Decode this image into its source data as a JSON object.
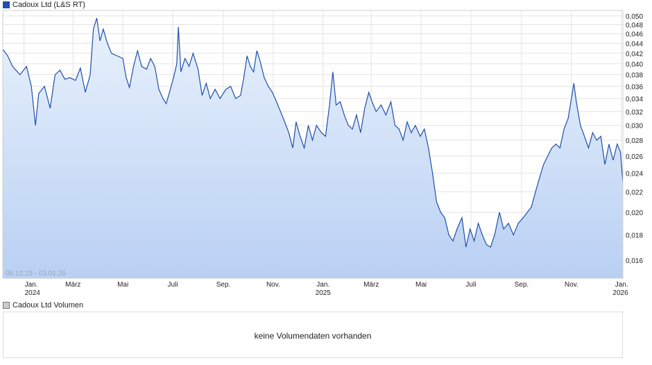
{
  "price_panel": {
    "legend_label": "Cadoux Ltd (L&S RT)",
    "date_range": "06.12.23 - 03.01.26"
  },
  "volume_panel": {
    "legend_label": "Cadoux Ltd Volumen",
    "message": "keine Volumendaten vorhanden"
  },
  "colors": {
    "line": "#1f4fa8",
    "fill_top": "#e9f2fc",
    "fill_bottom": "#b9d0f3",
    "grid": "#e3e3e3"
  },
  "chart_data": {
    "type": "area",
    "title": "Cadoux Ltd (L&S RT)",
    "xlabel": "",
    "ylabel": "",
    "x_tick_labels": [
      {
        "date": "2024-01-01",
        "label": "Jan.",
        "year": "2024"
      },
      {
        "date": "2024-03-01",
        "label": "März",
        "year": ""
      },
      {
        "date": "2024-05-01",
        "label": "Mai",
        "year": ""
      },
      {
        "date": "2024-07-01",
        "label": "Juli",
        "year": ""
      },
      {
        "date": "2024-09-01",
        "label": "Sep.",
        "year": ""
      },
      {
        "date": "2024-11-01",
        "label": "Nov.",
        "year": ""
      },
      {
        "date": "2025-01-01",
        "label": "Jan.",
        "year": "2025"
      },
      {
        "date": "2025-03-01",
        "label": "März",
        "year": ""
      },
      {
        "date": "2025-05-01",
        "label": "Mai",
        "year": ""
      },
      {
        "date": "2025-07-01",
        "label": "Juli",
        "year": ""
      },
      {
        "date": "2025-09-01",
        "label": "Sep.",
        "year": ""
      },
      {
        "date": "2025-11-01",
        "label": "Nov.",
        "year": ""
      },
      {
        "date": "2026-01-01",
        "label": "Jan.",
        "year": "2026"
      }
    ],
    "y_ticks": [
      {
        "value": 0.016,
        "label": "0,016"
      },
      {
        "value": 0.018,
        "label": "0,018"
      },
      {
        "value": 0.02,
        "label": "0,020"
      },
      {
        "value": 0.022,
        "label": "0,022"
      },
      {
        "value": 0.024,
        "label": "0,024"
      },
      {
        "value": 0.026,
        "label": "0,026"
      },
      {
        "value": 0.028,
        "label": "0,028"
      },
      {
        "value": 0.03,
        "label": "0,030"
      },
      {
        "value": 0.032,
        "label": "0,032"
      },
      {
        "value": 0.034,
        "label": "0,034"
      },
      {
        "value": 0.036,
        "label": "0,036"
      },
      {
        "value": 0.038,
        "label": "0,038"
      },
      {
        "value": 0.04,
        "label": "0,040"
      },
      {
        "value": 0.042,
        "label": "0,042"
      },
      {
        "value": 0.044,
        "label": "0,044"
      },
      {
        "value": 0.046,
        "label": "0,046"
      },
      {
        "value": 0.048,
        "label": "0,048"
      },
      {
        "value": 0.05,
        "label": "0,050"
      }
    ],
    "ylim": [
      0.0147,
      0.0513
    ],
    "xlim": [
      "2023-12-06",
      "2026-01-03"
    ],
    "y_scale": "log",
    "grid": true,
    "series": [
      {
        "values": [
          [
            "2023-12-06",
            0.0428
          ],
          [
            "2023-12-12",
            0.0415
          ],
          [
            "2023-12-18",
            0.0395
          ],
          [
            "2023-12-27",
            0.038
          ],
          [
            "2024-01-04",
            0.0395
          ],
          [
            "2024-01-10",
            0.036
          ],
          [
            "2024-01-15",
            0.03
          ],
          [
            "2024-01-19",
            0.0348
          ],
          [
            "2024-01-26",
            0.036
          ],
          [
            "2024-02-02",
            0.0325
          ],
          [
            "2024-02-08",
            0.038
          ],
          [
            "2024-02-14",
            0.0388
          ],
          [
            "2024-02-20",
            0.0372
          ],
          [
            "2024-02-26",
            0.0375
          ],
          [
            "2024-03-04",
            0.037
          ],
          [
            "2024-03-10",
            0.0392
          ],
          [
            "2024-03-16",
            0.035
          ],
          [
            "2024-03-22",
            0.038
          ],
          [
            "2024-03-26",
            0.047
          ],
          [
            "2024-03-30",
            0.0495
          ],
          [
            "2024-04-03",
            0.0445
          ],
          [
            "2024-04-07",
            0.047
          ],
          [
            "2024-04-12",
            0.044
          ],
          [
            "2024-04-17",
            0.042
          ],
          [
            "2024-04-24",
            0.0415
          ],
          [
            "2024-05-01",
            0.041
          ],
          [
            "2024-05-05",
            0.0375
          ],
          [
            "2024-05-09",
            0.0358
          ],
          [
            "2024-05-14",
            0.0395
          ],
          [
            "2024-05-19",
            0.0425
          ],
          [
            "2024-05-24",
            0.0395
          ],
          [
            "2024-05-30",
            0.039
          ],
          [
            "2024-06-04",
            0.041
          ],
          [
            "2024-06-09",
            0.0395
          ],
          [
            "2024-06-14",
            0.0355
          ],
          [
            "2024-06-19",
            0.034
          ],
          [
            "2024-06-23",
            0.0332
          ],
          [
            "2024-06-27",
            0.035
          ],
          [
            "2024-07-02",
            0.0375
          ],
          [
            "2024-07-06",
            0.04
          ],
          [
            "2024-07-08",
            0.0475
          ],
          [
            "2024-07-11",
            0.0385
          ],
          [
            "2024-07-16",
            0.041
          ],
          [
            "2024-07-21",
            0.0395
          ],
          [
            "2024-07-26",
            0.042
          ],
          [
            "2024-08-01",
            0.039
          ],
          [
            "2024-08-06",
            0.0345
          ],
          [
            "2024-08-11",
            0.0365
          ],
          [
            "2024-08-16",
            0.034
          ],
          [
            "2024-08-22",
            0.0355
          ],
          [
            "2024-08-28",
            0.034
          ],
          [
            "2024-09-04",
            0.0355
          ],
          [
            "2024-09-10",
            0.036
          ],
          [
            "2024-09-16",
            0.034
          ],
          [
            "2024-09-22",
            0.0345
          ],
          [
            "2024-09-26",
            0.0375
          ],
          [
            "2024-09-30",
            0.0415
          ],
          [
            "2024-10-04",
            0.0395
          ],
          [
            "2024-10-08",
            0.0385
          ],
          [
            "2024-10-12",
            0.0425
          ],
          [
            "2024-10-16",
            0.0405
          ],
          [
            "2024-10-21",
            0.0375
          ],
          [
            "2024-10-26",
            0.036
          ],
          [
            "2024-10-31",
            0.035
          ],
          [
            "2024-11-05",
            0.0335
          ],
          [
            "2024-11-10",
            0.032
          ],
          [
            "2024-11-15",
            0.0305
          ],
          [
            "2024-11-20",
            0.029
          ],
          [
            "2024-11-25",
            0.027
          ],
          [
            "2024-11-29",
            0.0305
          ],
          [
            "2024-12-04",
            0.0285
          ],
          [
            "2024-12-09",
            0.027
          ],
          [
            "2024-12-14",
            0.03
          ],
          [
            "2024-12-19",
            0.028
          ],
          [
            "2024-12-24",
            0.03
          ],
          [
            "2024-12-30",
            0.029
          ],
          [
            "2025-01-04",
            0.0285
          ],
          [
            "2025-01-09",
            0.033
          ],
          [
            "2025-01-13",
            0.0385
          ],
          [
            "2025-01-17",
            0.033
          ],
          [
            "2025-01-22",
            0.0335
          ],
          [
            "2025-01-27",
            0.0315
          ],
          [
            "2025-02-01",
            0.03
          ],
          [
            "2025-02-06",
            0.0295
          ],
          [
            "2025-02-11",
            0.0315
          ],
          [
            "2025-02-16",
            0.029
          ],
          [
            "2025-02-21",
            0.0325
          ],
          [
            "2025-02-26",
            0.035
          ],
          [
            "2025-03-02",
            0.0335
          ],
          [
            "2025-03-07",
            0.032
          ],
          [
            "2025-03-13",
            0.033
          ],
          [
            "2025-03-19",
            0.0315
          ],
          [
            "2025-03-25",
            0.0335
          ],
          [
            "2025-03-30",
            0.03
          ],
          [
            "2025-04-04",
            0.0295
          ],
          [
            "2025-04-09",
            0.028
          ],
          [
            "2025-04-14",
            0.0305
          ],
          [
            "2025-04-19",
            0.029
          ],
          [
            "2025-04-24",
            0.03
          ],
          [
            "2025-04-30",
            0.0285
          ],
          [
            "2025-05-05",
            0.0295
          ],
          [
            "2025-05-10",
            0.027
          ],
          [
            "2025-05-15",
            0.024
          ],
          [
            "2025-05-20",
            0.021
          ],
          [
            "2025-05-25",
            0.02
          ],
          [
            "2025-05-30",
            0.0195
          ],
          [
            "2025-06-04",
            0.018
          ],
          [
            "2025-06-09",
            0.0175
          ],
          [
            "2025-06-14",
            0.0185
          ],
          [
            "2025-06-20",
            0.0195
          ],
          [
            "2025-06-25",
            0.017
          ],
          [
            "2025-06-30",
            0.0185
          ],
          [
            "2025-07-05",
            0.0175
          ],
          [
            "2025-07-10",
            0.019
          ],
          [
            "2025-07-15",
            0.018
          ],
          [
            "2025-07-20",
            0.0172
          ],
          [
            "2025-07-25",
            0.017
          ],
          [
            "2025-07-30",
            0.018
          ],
          [
            "2025-08-05",
            0.02
          ],
          [
            "2025-08-10",
            0.0185
          ],
          [
            "2025-08-16",
            0.019
          ],
          [
            "2025-08-22",
            0.018
          ],
          [
            "2025-08-28",
            0.019
          ],
          [
            "2025-09-03",
            0.0195
          ],
          [
            "2025-09-08",
            0.02
          ],
          [
            "2025-09-13",
            0.0205
          ],
          [
            "2025-09-18",
            0.022
          ],
          [
            "2025-09-23",
            0.0235
          ],
          [
            "2025-09-28",
            0.025
          ],
          [
            "2025-10-03",
            0.026
          ],
          [
            "2025-10-08",
            0.027
          ],
          [
            "2025-10-13",
            0.0275
          ],
          [
            "2025-10-18",
            0.027
          ],
          [
            "2025-10-23",
            0.0295
          ],
          [
            "2025-10-28",
            0.031
          ],
          [
            "2025-11-01",
            0.034
          ],
          [
            "2025-11-04",
            0.0365
          ],
          [
            "2025-11-07",
            0.0335
          ],
          [
            "2025-11-12",
            0.03
          ],
          [
            "2025-11-17",
            0.0285
          ],
          [
            "2025-11-22",
            0.027
          ],
          [
            "2025-11-27",
            0.029
          ],
          [
            "2025-12-02",
            0.028
          ],
          [
            "2025-12-07",
            0.0285
          ],
          [
            "2025-12-12",
            0.025
          ],
          [
            "2025-12-17",
            0.0275
          ],
          [
            "2025-12-22",
            0.0255
          ],
          [
            "2025-12-27",
            0.0275
          ],
          [
            "2025-12-31",
            0.0265
          ],
          [
            "2026-01-03",
            0.023
          ]
        ]
      }
    ]
  }
}
